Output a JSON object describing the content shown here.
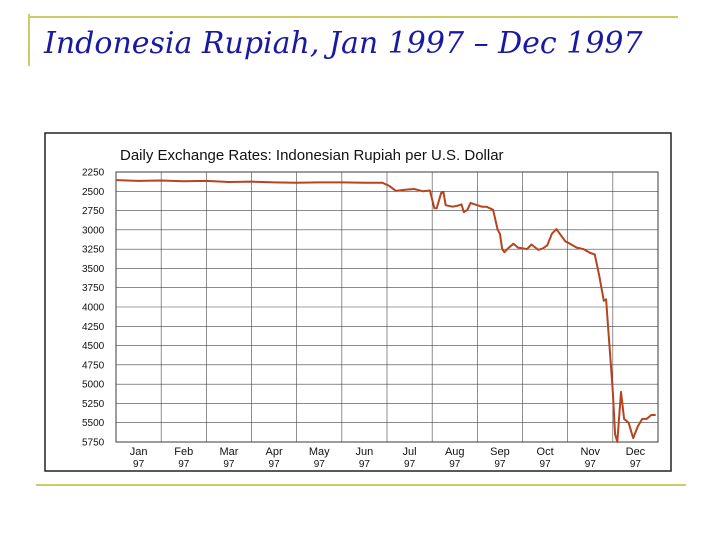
{
  "slide": {
    "title": "Indonesia Rupiah, Jan 1997 – Dec 1997"
  },
  "colors": {
    "title": "#1a1aa0",
    "rule": "#cccc66",
    "series": "#b5441f"
  },
  "chart_data": {
    "type": "line",
    "title": "Daily Exchange Rates: Indonesian Rupiah per U.S. Dollar",
    "xlabel": "",
    "ylabel": "",
    "ylim": [
      2250,
      5750
    ],
    "y_inverted": true,
    "yticks": [
      "2250",
      "2500",
      "2750",
      "3000",
      "3250",
      "3500",
      "3750",
      "4000",
      "4250",
      "4500",
      "4750",
      "5000",
      "5250",
      "5500",
      "5750"
    ],
    "xticks": [
      {
        "month": "Jan",
        "year": "97"
      },
      {
        "month": "Feb",
        "year": "97"
      },
      {
        "month": "Mar",
        "year": "97"
      },
      {
        "month": "Apr",
        "year": "97"
      },
      {
        "month": "May",
        "year": "97"
      },
      {
        "month": "Jun",
        "year": "97"
      },
      {
        "month": "Jul",
        "year": "97"
      },
      {
        "month": "Aug",
        "year": "97"
      },
      {
        "month": "Sep",
        "year": "97"
      },
      {
        "month": "Oct",
        "year": "97"
      },
      {
        "month": "Nov",
        "year": "97"
      },
      {
        "month": "Dec",
        "year": "97"
      }
    ],
    "grid": true,
    "series": [
      {
        "x_months": [
          0.0,
          0.5,
          1.0,
          1.5,
          2.0,
          2.5,
          3.0,
          3.5,
          4.0,
          4.5,
          5.0,
          5.5,
          5.9,
          6.05,
          6.2,
          6.4,
          6.6,
          6.8,
          6.95,
          7.05,
          7.1,
          7.2,
          7.25,
          7.3,
          7.45,
          7.55,
          7.65,
          7.7,
          7.78,
          7.85,
          8.0,
          8.1,
          8.2,
          8.35,
          8.45,
          8.5,
          8.55,
          8.6,
          8.7,
          8.8,
          8.9,
          9.0,
          9.1,
          9.2,
          9.35,
          9.45,
          9.55,
          9.65,
          9.75,
          9.85,
          9.95,
          10.05,
          10.2,
          10.35,
          10.5,
          10.6,
          10.7,
          10.8,
          10.85,
          10.9,
          10.95,
          11.0,
          11.05,
          11.1,
          11.18,
          11.25,
          11.35,
          11.45,
          11.55,
          11.65,
          11.75,
          11.85,
          11.95
        ],
        "values": [
          2355,
          2365,
          2360,
          2370,
          2365,
          2380,
          2375,
          2385,
          2390,
          2385,
          2385,
          2390,
          2390,
          2430,
          2495,
          2480,
          2470,
          2500,
          2490,
          2720,
          2720,
          2520,
          2515,
          2680,
          2700,
          2690,
          2670,
          2770,
          2740,
          2650,
          2680,
          2700,
          2700,
          2740,
          3000,
          3050,
          3250,
          3290,
          3230,
          3180,
          3230,
          3240,
          3250,
          3190,
          3260,
          3240,
          3200,
          3050,
          2990,
          3070,
          3150,
          3180,
          3230,
          3250,
          3300,
          3320,
          3600,
          3920,
          3900,
          4300,
          4700,
          5100,
          5650,
          5750,
          5100,
          5450,
          5500,
          5700,
          5550,
          5450,
          5450,
          5400,
          5400
        ]
      }
    ]
  }
}
